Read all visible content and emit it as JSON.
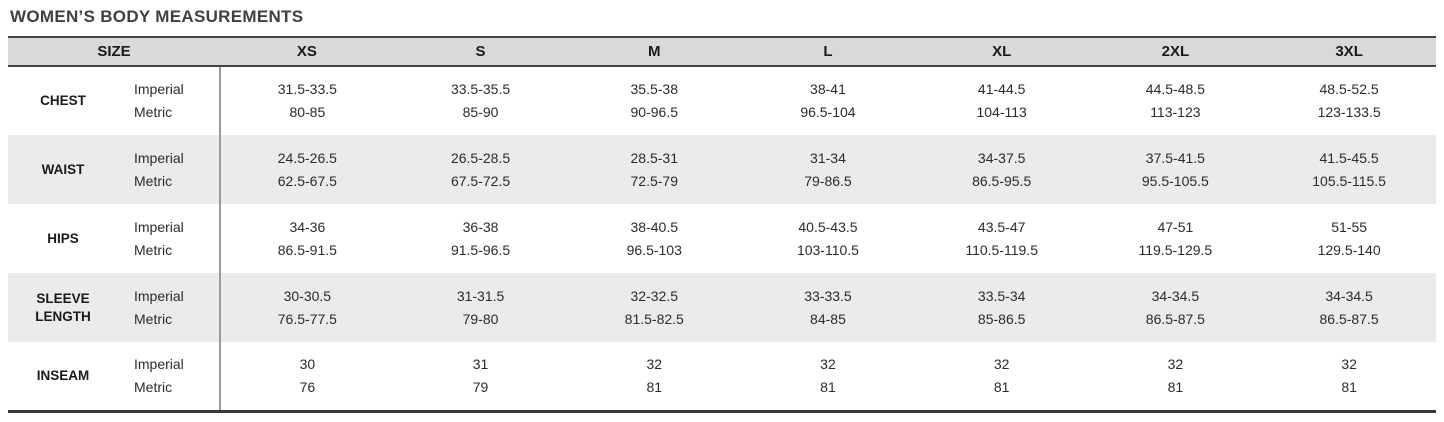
{
  "chart_data": {
    "type": "table",
    "title": "WOMEN’S BODY MEASUREMENTS",
    "columns": [
      "SIZE",
      "XS",
      "S",
      "M",
      "L",
      "XL",
      "2XL",
      "3XL"
    ],
    "unit_labels": {
      "imperial": "Imperial",
      "metric": "Metric"
    },
    "rows": [
      {
        "label": "CHEST",
        "imperial": [
          "31.5-33.5",
          "33.5-35.5",
          "35.5-38",
          "38-41",
          "41-44.5",
          "44.5-48.5",
          "48.5-52.5"
        ],
        "metric": [
          "80-85",
          "85-90",
          "90-96.5",
          "96.5-104",
          "104-113",
          "113-123",
          "123-133.5"
        ]
      },
      {
        "label": "WAIST",
        "imperial": [
          "24.5-26.5",
          "26.5-28.5",
          "28.5-31",
          "31-34",
          "34-37.5",
          "37.5-41.5",
          "41.5-45.5"
        ],
        "metric": [
          "62.5-67.5",
          "67.5-72.5",
          "72.5-79",
          "79-86.5",
          "86.5-95.5",
          "95.5-105.5",
          "105.5-115.5"
        ]
      },
      {
        "label": "HIPS",
        "imperial": [
          "34-36",
          "36-38",
          "38-40.5",
          "40.5-43.5",
          "43.5-47",
          "47-51",
          "51-55"
        ],
        "metric": [
          "86.5-91.5",
          "91.5-96.5",
          "96.5-103",
          "103-110.5",
          "110.5-119.5",
          "119.5-129.5",
          "129.5-140"
        ]
      },
      {
        "label": "SLEEVE LENGTH",
        "imperial": [
          "30-30.5",
          "31-31.5",
          "32-32.5",
          "33-33.5",
          "33.5-34",
          "34-34.5",
          "34-34.5"
        ],
        "metric": [
          "76.5-77.5",
          "79-80",
          "81.5-82.5",
          "84-85",
          "85-86.5",
          "86.5-87.5",
          "86.5-87.5"
        ]
      },
      {
        "label": "INSEAM",
        "imperial": [
          "30",
          "31",
          "32",
          "32",
          "32",
          "32",
          "32"
        ],
        "metric": [
          "76",
          "79",
          "81",
          "81",
          "81",
          "81",
          "81"
        ]
      }
    ],
    "layout": {
      "striped_row_indexes": [
        1,
        3
      ],
      "header_bg": "#d9d9d9",
      "stripe_bg": "#ebebeb",
      "border_dark": "#454545",
      "divider_gray": "#9a9a9a",
      "title_color": "#404040",
      "text_color": "#2b2b2b"
    }
  }
}
